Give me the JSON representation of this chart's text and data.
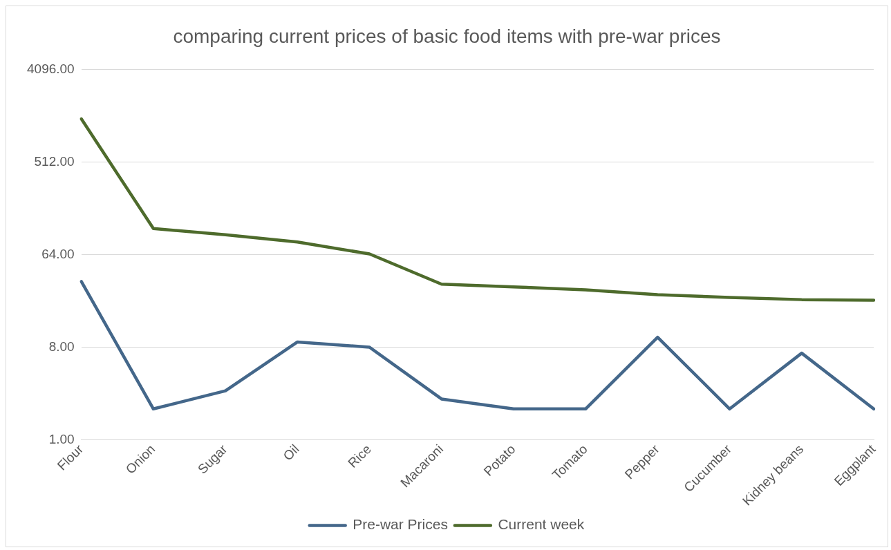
{
  "chart_data": {
    "type": "line",
    "title": "comparing current prices of basic food items with pre-war prices",
    "categories": [
      "Flour",
      "Onion",
      "Sugar",
      "Oil",
      "Rice",
      "Macaroni",
      "Potato",
      "Tomato",
      "Pepper",
      "Cucumber",
      "Kidney beans",
      "Eggplant"
    ],
    "series": [
      {
        "name": "Pre-war Prices",
        "color": "#44678a",
        "values": [
          35,
          2,
          3,
          9,
          8,
          2.5,
          2,
          2,
          10,
          2,
          7,
          2
        ]
      },
      {
        "name": "Current week",
        "color": "#4e6b2c",
        "values": [
          1350,
          115,
          100,
          85,
          65,
          33,
          31,
          29,
          26,
          24.5,
          23.3,
          23
        ]
      }
    ],
    "log": true,
    "ylim": [
      1,
      4096
    ],
    "yticks": [
      {
        "value": 1,
        "label": "1.00"
      },
      {
        "value": 8,
        "label": "8.00"
      },
      {
        "value": 64,
        "label": "64.00"
      },
      {
        "value": 512,
        "label": "512.00"
      },
      {
        "value": 4096,
        "label": "4096.00"
      }
    ],
    "grid": "y",
    "legend": "bottom",
    "marker": "none",
    "line_style": "solid"
  }
}
